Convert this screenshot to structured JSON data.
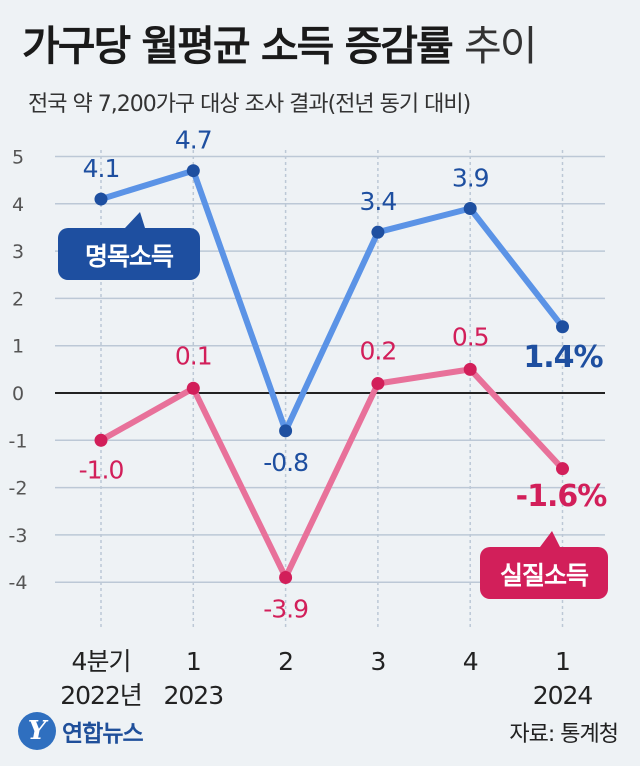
{
  "header": {
    "title_main": "가구당 월평균 소득 증감률",
    "title_light": "추이",
    "subtitle": "전국 약 7,200가구 대상 조사 결과(전년 동기 대비)"
  },
  "footer": {
    "logo_text": "연합뉴스",
    "source": "자료: 통계청"
  },
  "colors": {
    "nominal": "#5b93e6",
    "nominal_dot": "#1e4fa0",
    "real": "#e8719a",
    "real_dot": "#d21f5a",
    "grid": "#bcc8d6"
  },
  "chart_data": {
    "type": "line",
    "categories": [
      "4분기\n2022년",
      "1\n2023",
      "2",
      "3",
      "4",
      "1\n2024"
    ],
    "ylim": [
      -4.5,
      5
    ],
    "yticks": [
      5,
      4,
      3,
      2,
      1,
      0,
      -1,
      -2,
      -3,
      -4
    ],
    "series": [
      {
        "name": "명목소득",
        "values": [
          4.1,
          4.7,
          -0.8,
          3.4,
          3.9,
          1.4
        ],
        "labels": [
          "4.1",
          "4.7",
          "-0.8",
          "3.4",
          "3.9",
          "1.4%"
        ]
      },
      {
        "name": "실질소득",
        "values": [
          -1.0,
          0.1,
          -3.9,
          0.2,
          0.5,
          -1.6
        ],
        "labels": [
          "-1.0",
          "0.1",
          "-3.9",
          "0.2",
          "0.5",
          "-1.6%"
        ]
      }
    ]
  }
}
